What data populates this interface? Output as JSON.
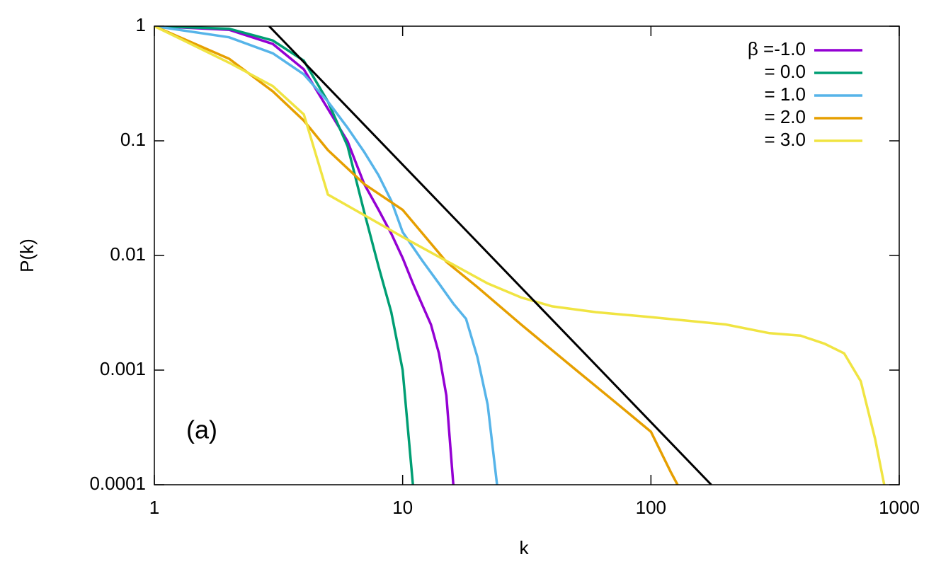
{
  "chart_data": {
    "type": "line",
    "x_label": "k",
    "y_label": "P(k)",
    "annotation": "(a)",
    "xscale": "log",
    "yscale": "log",
    "xlim": [
      1,
      1000
    ],
    "ylim": [
      0.0001,
      1
    ],
    "xticks": [
      1,
      10,
      100,
      1000
    ],
    "yticks": [
      0.0001,
      0.001,
      0.01,
      0.1,
      1
    ],
    "legend": "top-right",
    "series": [
      {
        "name": "β =-1.0",
        "color": "#9400d3",
        "x": [
          1,
          2,
          3,
          4,
          5,
          6,
          7,
          8,
          9,
          10,
          11,
          12,
          13,
          14,
          15,
          16
        ],
        "values": [
          1,
          0.93,
          0.7,
          0.42,
          0.19,
          0.099,
          0.042,
          0.025,
          0.0155,
          0.0095,
          0.0057,
          0.0037,
          0.0025,
          0.0014,
          0.0006,
          0.0001
        ]
      },
      {
        "name": "= 0.0",
        "color": "#009e73",
        "x": [
          1,
          2,
          3,
          4,
          5,
          6,
          7,
          8,
          9,
          10,
          11
        ],
        "values": [
          1,
          0.95,
          0.75,
          0.5,
          0.22,
          0.09,
          0.024,
          0.008,
          0.0032,
          0.001,
          0.0001
        ]
      },
      {
        "name": "= 1.0",
        "color": "#56b4e9",
        "x": [
          1,
          2,
          3,
          4,
          5,
          6,
          7,
          8,
          9,
          10,
          12,
          14,
          16,
          18,
          20,
          22,
          24
        ],
        "values": [
          1,
          0.8,
          0.58,
          0.38,
          0.22,
          0.13,
          0.08,
          0.05,
          0.03,
          0.016,
          0.009,
          0.0057,
          0.0038,
          0.0028,
          0.0013,
          0.0005,
          0.0001
        ]
      },
      {
        "name": "= 2.0",
        "color": "#e69f00",
        "x": [
          1,
          2,
          3,
          4,
          5,
          7,
          10,
          15,
          20,
          30,
          50,
          70,
          100,
          120,
          128
        ],
        "values": [
          1,
          0.52,
          0.27,
          0.15,
          0.083,
          0.042,
          0.025,
          0.0088,
          0.0053,
          0.0025,
          0.001,
          0.00055,
          0.00029,
          0.00013,
          0.0001
        ]
      },
      {
        "name": "= 3.0",
        "color": "#f0e442",
        "x": [
          1,
          2,
          3,
          4,
          5,
          10,
          22,
          30,
          40,
          60,
          100,
          200,
          300,
          400,
          500,
          600,
          700,
          800,
          870
        ],
        "values": [
          1,
          0.48,
          0.3,
          0.17,
          0.034,
          0.0145,
          0.0057,
          0.0043,
          0.0036,
          0.0032,
          0.0029,
          0.0025,
          0.0021,
          0.002,
          0.0017,
          0.0014,
          0.0008,
          0.00025,
          0.0001
        ]
      },
      {
        "color": "#000000",
        "x": [
          2.9,
          175
        ],
        "values": [
          1,
          0.0001
        ]
      }
    ]
  }
}
